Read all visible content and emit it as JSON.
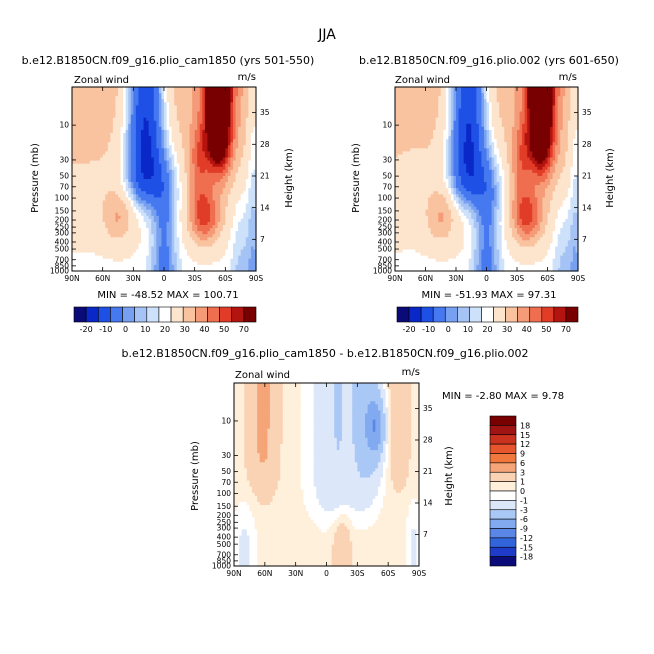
{
  "figure_title": "JJA",
  "chart_data": [
    {
      "type": "heatmap",
      "title": "b.e12.B1850CN.f09_g16.plio_cam1850 (yrs 501-550)",
      "variable_label": "Zonal wind",
      "units": "m/s",
      "xlabel": "",
      "ylabel": "Pressure (mb)",
      "ylabel_right": "Height (km)",
      "x_ticks": [
        "90N",
        "60N",
        "30N",
        "0",
        "30S",
        "60S",
        "90S"
      ],
      "p_ticks": [
        "10",
        "30",
        "50",
        "70",
        "100",
        "150",
        "200",
        "250",
        "300",
        "400",
        "500",
        "700",
        "850",
        "1000"
      ],
      "height_ticks": [
        "7",
        "14",
        "21",
        "28",
        "35"
      ],
      "stats": "MIN = -48.52   MAX = 100.71",
      "min": -48.52,
      "max": 100.71,
      "colorbar_labels": [
        "-20",
        "-10",
        "0",
        "10",
        "20",
        "30",
        "40",
        "50",
        "70"
      ]
    },
    {
      "type": "heatmap",
      "title": "b.e12.B1850CN.f09_g16.plio.002 (yrs 601-650)",
      "variable_label": "Zonal wind",
      "units": "m/s",
      "xlabel": "",
      "ylabel": "Pressure (mb)",
      "ylabel_right": "Height (km)",
      "x_ticks": [
        "90N",
        "60N",
        "30N",
        "0",
        "30S",
        "60S",
        "90S"
      ],
      "p_ticks": [
        "10",
        "30",
        "50",
        "70",
        "100",
        "150",
        "200",
        "250",
        "300",
        "400",
        "500",
        "700",
        "850",
        "1000"
      ],
      "height_ticks": [
        "7",
        "14",
        "21",
        "28",
        "35"
      ],
      "stats": "MIN = -51.93   MAX = 97.31",
      "min": -51.93,
      "max": 97.31,
      "colorbar_labels": [
        "-20",
        "-10",
        "0",
        "10",
        "20",
        "30",
        "40",
        "50",
        "70"
      ]
    },
    {
      "type": "heatmap",
      "title": "b.e12.B1850CN.f09_g16.plio_cam1850 - b.e12.B1850CN.f09_g16.plio.002",
      "variable_label": "Zonal wind",
      "units": "m/s",
      "xlabel": "",
      "ylabel": "Pressure (mb)",
      "ylabel_right": "Height (km)",
      "x_ticks": [
        "90N",
        "60N",
        "30N",
        "0",
        "30S",
        "60S",
        "90S"
      ],
      "p_ticks": [
        "10",
        "30",
        "50",
        "70",
        "100",
        "150",
        "200",
        "250",
        "300",
        "400",
        "500",
        "700",
        "850",
        "1000"
      ],
      "height_ticks": [
        "7",
        "14",
        "21",
        "28",
        "35"
      ],
      "stats": "MIN = -2.80   MAX = 9.78",
      "min": -2.8,
      "max": 9.78,
      "colorbar_labels": [
        "18",
        "15",
        "12",
        "9",
        "6",
        "3",
        "1",
        "0",
        "-1",
        "-3",
        "-6",
        "-9",
        "-12",
        "-15",
        "-18"
      ]
    }
  ],
  "palettes": {
    "absolute": [
      "#0a0a78",
      "#0a28c8",
      "#1e50e6",
      "#4678f0",
      "#78a0f0",
      "#a5c3f5",
      "#cde1fa",
      "#ffffff",
      "#fde4cd",
      "#f9c3a0",
      "#f59b78",
      "#f06e50",
      "#e03c28",
      "#b4140f",
      "#780000"
    ],
    "diff": [
      "#780000",
      "#a01414",
      "#c8321e",
      "#e6552d",
      "#f0783c",
      "#f5a578",
      "#fad2b4",
      "#fff0dc",
      "#ffffff",
      "#dce8fa",
      "#aac8f5",
      "#82aaf0",
      "#5a87e6",
      "#3264dc",
      "#1e3cc8",
      "#0a0a78"
    ]
  }
}
